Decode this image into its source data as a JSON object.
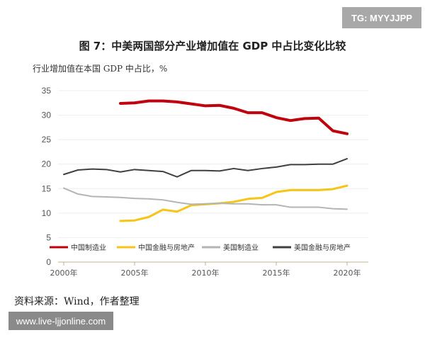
{
  "watermark_top": "TG: MYYJJPP",
  "watermark_bottom": "www.live-ljjonline.com",
  "source": "资料来源：Wind，作者整理",
  "chart_data": {
    "type": "line",
    "title": "图 7：中美两国部分产业增加值在 GDP 中占比变化比较",
    "ylabel": "行业增加值在本国 GDP 中占比，%",
    "xlabel": "",
    "ylim": [
      0,
      35
    ],
    "yticks": [
      0,
      5,
      10,
      15,
      20,
      25,
      30,
      35
    ],
    "xlim": [
      2000,
      2021
    ],
    "xticks": [
      2000,
      2005,
      2010,
      2015,
      2020
    ],
    "xtick_labels": [
      "2000年",
      "2005年",
      "2010年",
      "2015年",
      "2020年"
    ],
    "grid": "horizontal",
    "legend": "bottom",
    "series": [
      {
        "name": "中国制造业",
        "color": "#c0000c",
        "x": [
          2004,
          2005,
          2006,
          2007,
          2008,
          2009,
          2010,
          2011,
          2012,
          2013,
          2014,
          2015,
          2016,
          2017,
          2018,
          2019,
          2020
        ],
        "values": [
          32.4,
          32.5,
          32.9,
          32.9,
          32.7,
          32.3,
          31.9,
          32.0,
          31.4,
          30.5,
          30.5,
          29.5,
          28.9,
          29.3,
          29.4,
          26.8,
          26.2
        ]
      },
      {
        "name": "中国金融与房地产",
        "color": "#f5c518",
        "x": [
          2004,
          2005,
          2006,
          2007,
          2008,
          2009,
          2010,
          2011,
          2012,
          2013,
          2014,
          2015,
          2016,
          2017,
          2018,
          2019,
          2020
        ],
        "values": [
          8.4,
          8.5,
          9.2,
          10.7,
          10.3,
          11.6,
          11.8,
          12.0,
          12.3,
          12.9,
          13.1,
          14.3,
          14.7,
          14.7,
          14.7,
          14.9,
          15.6
        ]
      },
      {
        "name": "美国制造业",
        "color": "#b4b4b4",
        "x": [
          2000,
          2001,
          2002,
          2003,
          2004,
          2005,
          2006,
          2007,
          2008,
          2009,
          2010,
          2011,
          2012,
          2013,
          2014,
          2015,
          2016,
          2017,
          2018,
          2019,
          2020
        ],
        "values": [
          15.1,
          13.9,
          13.4,
          13.3,
          13.2,
          13.0,
          12.9,
          12.7,
          12.2,
          11.8,
          11.9,
          12.0,
          11.9,
          11.9,
          11.7,
          11.7,
          11.2,
          11.2,
          11.2,
          10.9,
          10.8
        ]
      },
      {
        "name": "美国金融与房地产",
        "color": "#404040",
        "x": [
          2000,
          2001,
          2002,
          2003,
          2004,
          2005,
          2006,
          2007,
          2008,
          2009,
          2010,
          2011,
          2012,
          2013,
          2014,
          2015,
          2016,
          2017,
          2018,
          2019,
          2020
        ],
        "values": [
          17.9,
          18.8,
          19.0,
          18.9,
          18.4,
          18.9,
          18.7,
          18.5,
          17.4,
          18.7,
          18.7,
          18.6,
          19.1,
          18.7,
          19.1,
          19.4,
          19.9,
          19.9,
          20.0,
          20.0,
          21.1
        ]
      }
    ]
  }
}
